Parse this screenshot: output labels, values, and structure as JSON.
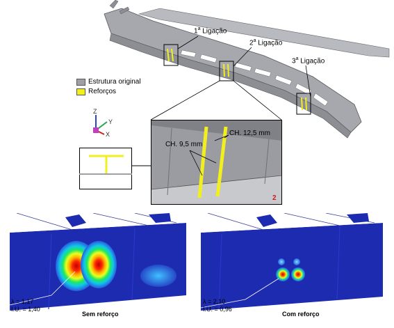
{
  "colors": {
    "structure": "#9ea0a6",
    "reinforcement": "#f2ef1e",
    "fea_bg": "#1b2ab0"
  },
  "connections": [
    {
      "num": "1",
      "suffix": "a",
      "text": " Ligação"
    },
    {
      "num": "2",
      "suffix": "a",
      "text": " Ligação"
    },
    {
      "num": "3",
      "suffix": "a",
      "text": " Ligação"
    }
  ],
  "legend": {
    "original": "Estrutura original",
    "reinforcements": "Reforços"
  },
  "axes": {
    "z": "Z",
    "y": "Y",
    "x": "X"
  },
  "detail": {
    "thickness_a": "CH. 9,5 mm",
    "thickness_b": "CH. 12,5 mm",
    "number": "2"
  },
  "results": {
    "without": {
      "lambda": "λ = 1,17",
      "iu": "I.U. = 1,40",
      "caption": "Sem reforço"
    },
    "with": {
      "lambda": "λ = 2,10",
      "iu": "I.U. = 0,96",
      "caption": "Com reforço"
    }
  }
}
